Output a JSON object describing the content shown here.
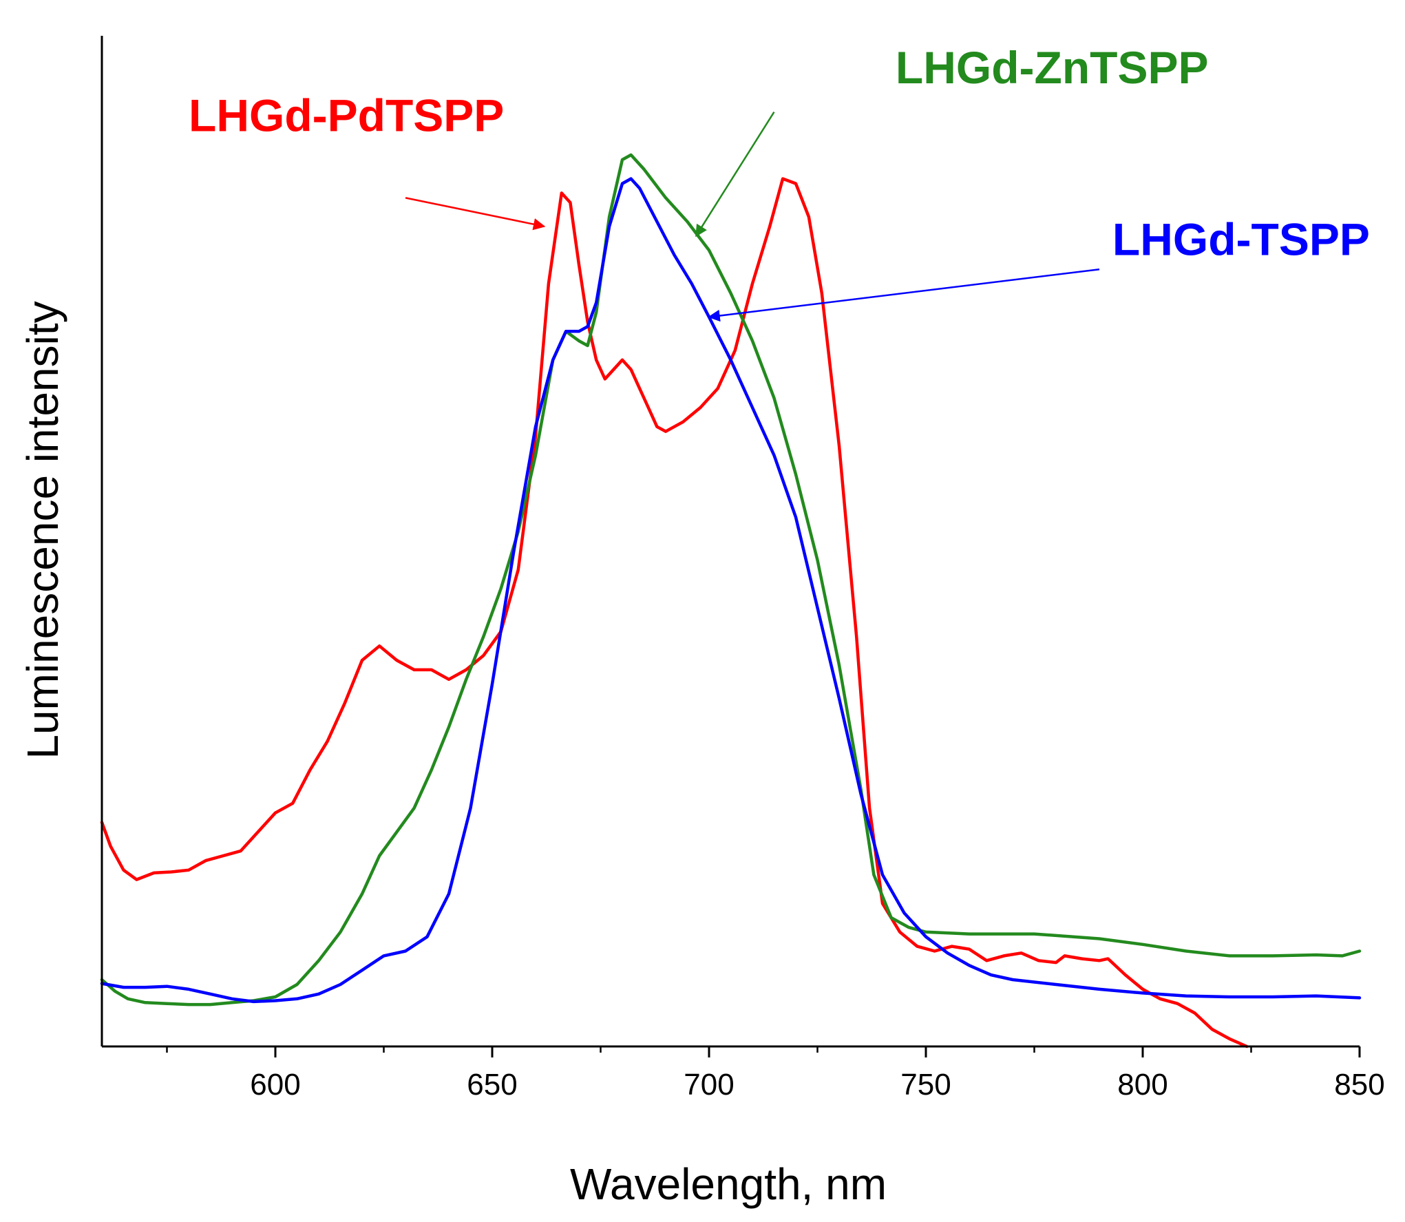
{
  "chart_data": {
    "type": "line",
    "title": "",
    "xlabel": "Wavelength, nm",
    "ylabel": "Luminescence intensity",
    "xlim": [
      560,
      850
    ],
    "ylim": [
      0,
      1.0
    ],
    "xticks": [
      600,
      650,
      700,
      750,
      800,
      850
    ],
    "yticks_shown": false,
    "grid": false,
    "legend": "inline labels with arrows",
    "series": [
      {
        "name": "LHGd-PdTSPP",
        "color": "#ff0000",
        "label_pos": [
          580,
          0.96
        ],
        "arrow_from": [
          630,
          0.89
        ],
        "arrow_to": [
          662,
          0.86
        ],
        "points": [
          [
            560,
            0.235
          ],
          [
            562,
            0.21
          ],
          [
            565,
            0.185
          ],
          [
            568,
            0.175
          ],
          [
            572,
            0.182
          ],
          [
            576,
            0.183
          ],
          [
            580,
            0.185
          ],
          [
            584,
            0.195
          ],
          [
            588,
            0.2
          ],
          [
            592,
            0.205
          ],
          [
            596,
            0.225
          ],
          [
            600,
            0.245
          ],
          [
            604,
            0.255
          ],
          [
            608,
            0.29
          ],
          [
            612,
            0.32
          ],
          [
            616,
            0.36
          ],
          [
            620,
            0.405
          ],
          [
            624,
            0.42
          ],
          [
            628,
            0.405
          ],
          [
            632,
            0.395
          ],
          [
            636,
            0.395
          ],
          [
            640,
            0.385
          ],
          [
            644,
            0.395
          ],
          [
            648,
            0.41
          ],
          [
            652,
            0.435
          ],
          [
            656,
            0.5
          ],
          [
            660,
            0.64
          ],
          [
            663,
            0.8
          ],
          [
            666,
            0.895
          ],
          [
            668,
            0.885
          ],
          [
            670,
            0.82
          ],
          [
            672,
            0.76
          ],
          [
            674,
            0.72
          ],
          [
            676,
            0.7
          ],
          [
            678,
            0.71
          ],
          [
            680,
            0.72
          ],
          [
            682,
            0.71
          ],
          [
            684,
            0.69
          ],
          [
            686,
            0.67
          ],
          [
            688,
            0.65
          ],
          [
            690,
            0.645
          ],
          [
            694,
            0.655
          ],
          [
            698,
            0.67
          ],
          [
            702,
            0.69
          ],
          [
            706,
            0.73
          ],
          [
            710,
            0.8
          ],
          [
            714,
            0.86
          ],
          [
            717,
            0.91
          ],
          [
            720,
            0.905
          ],
          [
            723,
            0.87
          ],
          [
            726,
            0.79
          ],
          [
            730,
            0.63
          ],
          [
            734,
            0.43
          ],
          [
            737,
            0.25
          ],
          [
            740,
            0.15
          ],
          [
            744,
            0.12
          ],
          [
            748,
            0.105
          ],
          [
            752,
            0.1
          ],
          [
            756,
            0.105
          ],
          [
            760,
            0.102
          ],
          [
            764,
            0.09
          ],
          [
            768,
            0.095
          ],
          [
            772,
            0.098
          ],
          [
            776,
            0.09
          ],
          [
            780,
            0.088
          ],
          [
            782,
            0.095
          ],
          [
            786,
            0.092
          ],
          [
            790,
            0.09
          ],
          [
            792,
            0.092
          ],
          [
            796,
            0.075
          ],
          [
            800,
            0.06
          ],
          [
            804,
            0.05
          ],
          [
            808,
            0.045
          ],
          [
            812,
            0.035
          ],
          [
            816,
            0.018
          ],
          [
            820,
            0.008
          ],
          [
            824,
            0.0
          ]
        ]
      },
      {
        "name": "LHGd-ZnTSPP",
        "color": "#238a1e",
        "label_pos": [
          743,
          1.01
        ],
        "arrow_from": [
          715,
          0.98
        ],
        "arrow_to": [
          697,
          0.85
        ],
        "points": [
          [
            560,
            0.07
          ],
          [
            563,
            0.058
          ],
          [
            566,
            0.05
          ],
          [
            570,
            0.046
          ],
          [
            575,
            0.045
          ],
          [
            580,
            0.044
          ],
          [
            585,
            0.044
          ],
          [
            590,
            0.046
          ],
          [
            595,
            0.048
          ],
          [
            600,
            0.052
          ],
          [
            605,
            0.065
          ],
          [
            610,
            0.09
          ],
          [
            615,
            0.12
          ],
          [
            620,
            0.16
          ],
          [
            624,
            0.2
          ],
          [
            628,
            0.225
          ],
          [
            632,
            0.25
          ],
          [
            636,
            0.29
          ],
          [
            640,
            0.335
          ],
          [
            644,
            0.385
          ],
          [
            648,
            0.43
          ],
          [
            652,
            0.48
          ],
          [
            656,
            0.54
          ],
          [
            660,
            0.62
          ],
          [
            664,
            0.72
          ],
          [
            667,
            0.75
          ],
          [
            670,
            0.74
          ],
          [
            672,
            0.735
          ],
          [
            674,
            0.77
          ],
          [
            677,
            0.87
          ],
          [
            680,
            0.93
          ],
          [
            682,
            0.935
          ],
          [
            685,
            0.92
          ],
          [
            690,
            0.89
          ],
          [
            695,
            0.865
          ],
          [
            700,
            0.835
          ],
          [
            705,
            0.79
          ],
          [
            710,
            0.74
          ],
          [
            715,
            0.68
          ],
          [
            720,
            0.6
          ],
          [
            725,
            0.51
          ],
          [
            730,
            0.4
          ],
          [
            735,
            0.27
          ],
          [
            738,
            0.18
          ],
          [
            742,
            0.135
          ],
          [
            746,
            0.125
          ],
          [
            750,
            0.12
          ],
          [
            760,
            0.118
          ],
          [
            775,
            0.118
          ],
          [
            790,
            0.113
          ],
          [
            800,
            0.107
          ],
          [
            810,
            0.1
          ],
          [
            820,
            0.095
          ],
          [
            830,
            0.095
          ],
          [
            840,
            0.096
          ],
          [
            846,
            0.095
          ],
          [
            850,
            0.1
          ]
        ]
      },
      {
        "name": "LHGd-TSPP",
        "color": "#0000ff",
        "label_pos": [
          793,
          0.83
        ],
        "arrow_from": [
          790,
          0.815
        ],
        "arrow_to": [
          700,
          0.765
        ],
        "points": [
          [
            560,
            0.066
          ],
          [
            565,
            0.062
          ],
          [
            570,
            0.062
          ],
          [
            575,
            0.063
          ],
          [
            580,
            0.06
          ],
          [
            585,
            0.055
          ],
          [
            590,
            0.05
          ],
          [
            595,
            0.047
          ],
          [
            600,
            0.048
          ],
          [
            605,
            0.05
          ],
          [
            610,
            0.055
          ],
          [
            615,
            0.065
          ],
          [
            620,
            0.08
          ],
          [
            625,
            0.095
          ],
          [
            630,
            0.1
          ],
          [
            635,
            0.115
          ],
          [
            640,
            0.16
          ],
          [
            645,
            0.25
          ],
          [
            650,
            0.38
          ],
          [
            655,
            0.52
          ],
          [
            660,
            0.65
          ],
          [
            664,
            0.72
          ],
          [
            667,
            0.75
          ],
          [
            670,
            0.75
          ],
          [
            672,
            0.755
          ],
          [
            674,
            0.78
          ],
          [
            677,
            0.86
          ],
          [
            680,
            0.905
          ],
          [
            682,
            0.91
          ],
          [
            684,
            0.9
          ],
          [
            688,
            0.865
          ],
          [
            692,
            0.83
          ],
          [
            696,
            0.8
          ],
          [
            700,
            0.765
          ],
          [
            705,
            0.72
          ],
          [
            710,
            0.67
          ],
          [
            715,
            0.62
          ],
          [
            720,
            0.555
          ],
          [
            725,
            0.46
          ],
          [
            730,
            0.365
          ],
          [
            735,
            0.265
          ],
          [
            740,
            0.18
          ],
          [
            745,
            0.14
          ],
          [
            750,
            0.115
          ],
          [
            755,
            0.098
          ],
          [
            760,
            0.085
          ],
          [
            765,
            0.075
          ],
          [
            770,
            0.07
          ],
          [
            780,
            0.065
          ],
          [
            790,
            0.06
          ],
          [
            800,
            0.056
          ],
          [
            810,
            0.053
          ],
          [
            820,
            0.052
          ],
          [
            830,
            0.052
          ],
          [
            840,
            0.053
          ],
          [
            850,
            0.051
          ]
        ]
      }
    ]
  }
}
